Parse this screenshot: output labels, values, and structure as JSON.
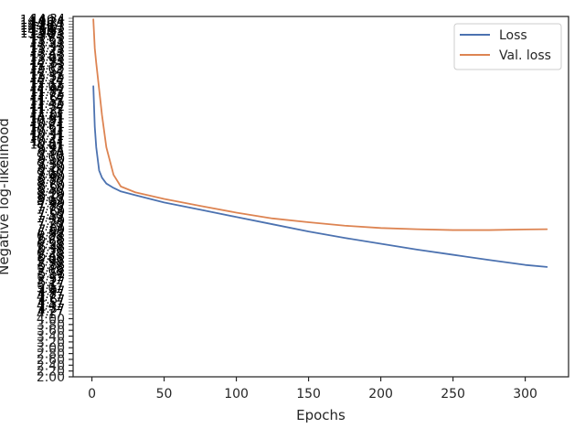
{
  "chart_data": {
    "type": "line",
    "xlabel": "Epochs",
    "ylabel": "Negative log-likelihood",
    "xlim": [
      -13,
      330
    ],
    "ylim": [
      2.0,
      14.4
    ],
    "x_ticks": [
      0,
      50,
      100,
      150,
      200,
      250,
      300
    ],
    "y_ticks_visible": [
      "2.00",
      "2.20",
      "2.40",
      "2.60",
      "2.80",
      "3.00",
      "3.20",
      "3.40",
      "3.60",
      "3.80",
      "4.00"
    ],
    "y_ticks_overlapping_note": "Dense overlapping tick labels above 4.00 are illegible.",
    "legend_placement": "top-right",
    "grid": false,
    "series": [
      {
        "name": "Loss",
        "color": "#4c72b0",
        "x": [
          1,
          2,
          3,
          4,
          5,
          7,
          10,
          15,
          20,
          30,
          50,
          75,
          100,
          125,
          150,
          175,
          200,
          225,
          250,
          275,
          300,
          315
        ],
        "values": [
          12.0,
          10.6,
          9.9,
          9.5,
          9.1,
          8.85,
          8.65,
          8.5,
          8.38,
          8.25,
          8.0,
          7.75,
          7.5,
          7.25,
          7.0,
          6.78,
          6.58,
          6.38,
          6.2,
          6.02,
          5.85,
          5.78
        ]
      },
      {
        "name": "Val. loss",
        "color": "#dd8452",
        "x": [
          1,
          2,
          3,
          5,
          7,
          10,
          15,
          20,
          30,
          50,
          75,
          100,
          125,
          150,
          175,
          200,
          225,
          250,
          275,
          300,
          315
        ],
        "values": [
          14.3,
          13.3,
          12.8,
          11.9,
          11.0,
          9.9,
          8.95,
          8.55,
          8.35,
          8.12,
          7.88,
          7.65,
          7.45,
          7.32,
          7.2,
          7.12,
          7.08,
          7.05,
          7.05,
          7.07,
          7.08
        ]
      }
    ]
  }
}
